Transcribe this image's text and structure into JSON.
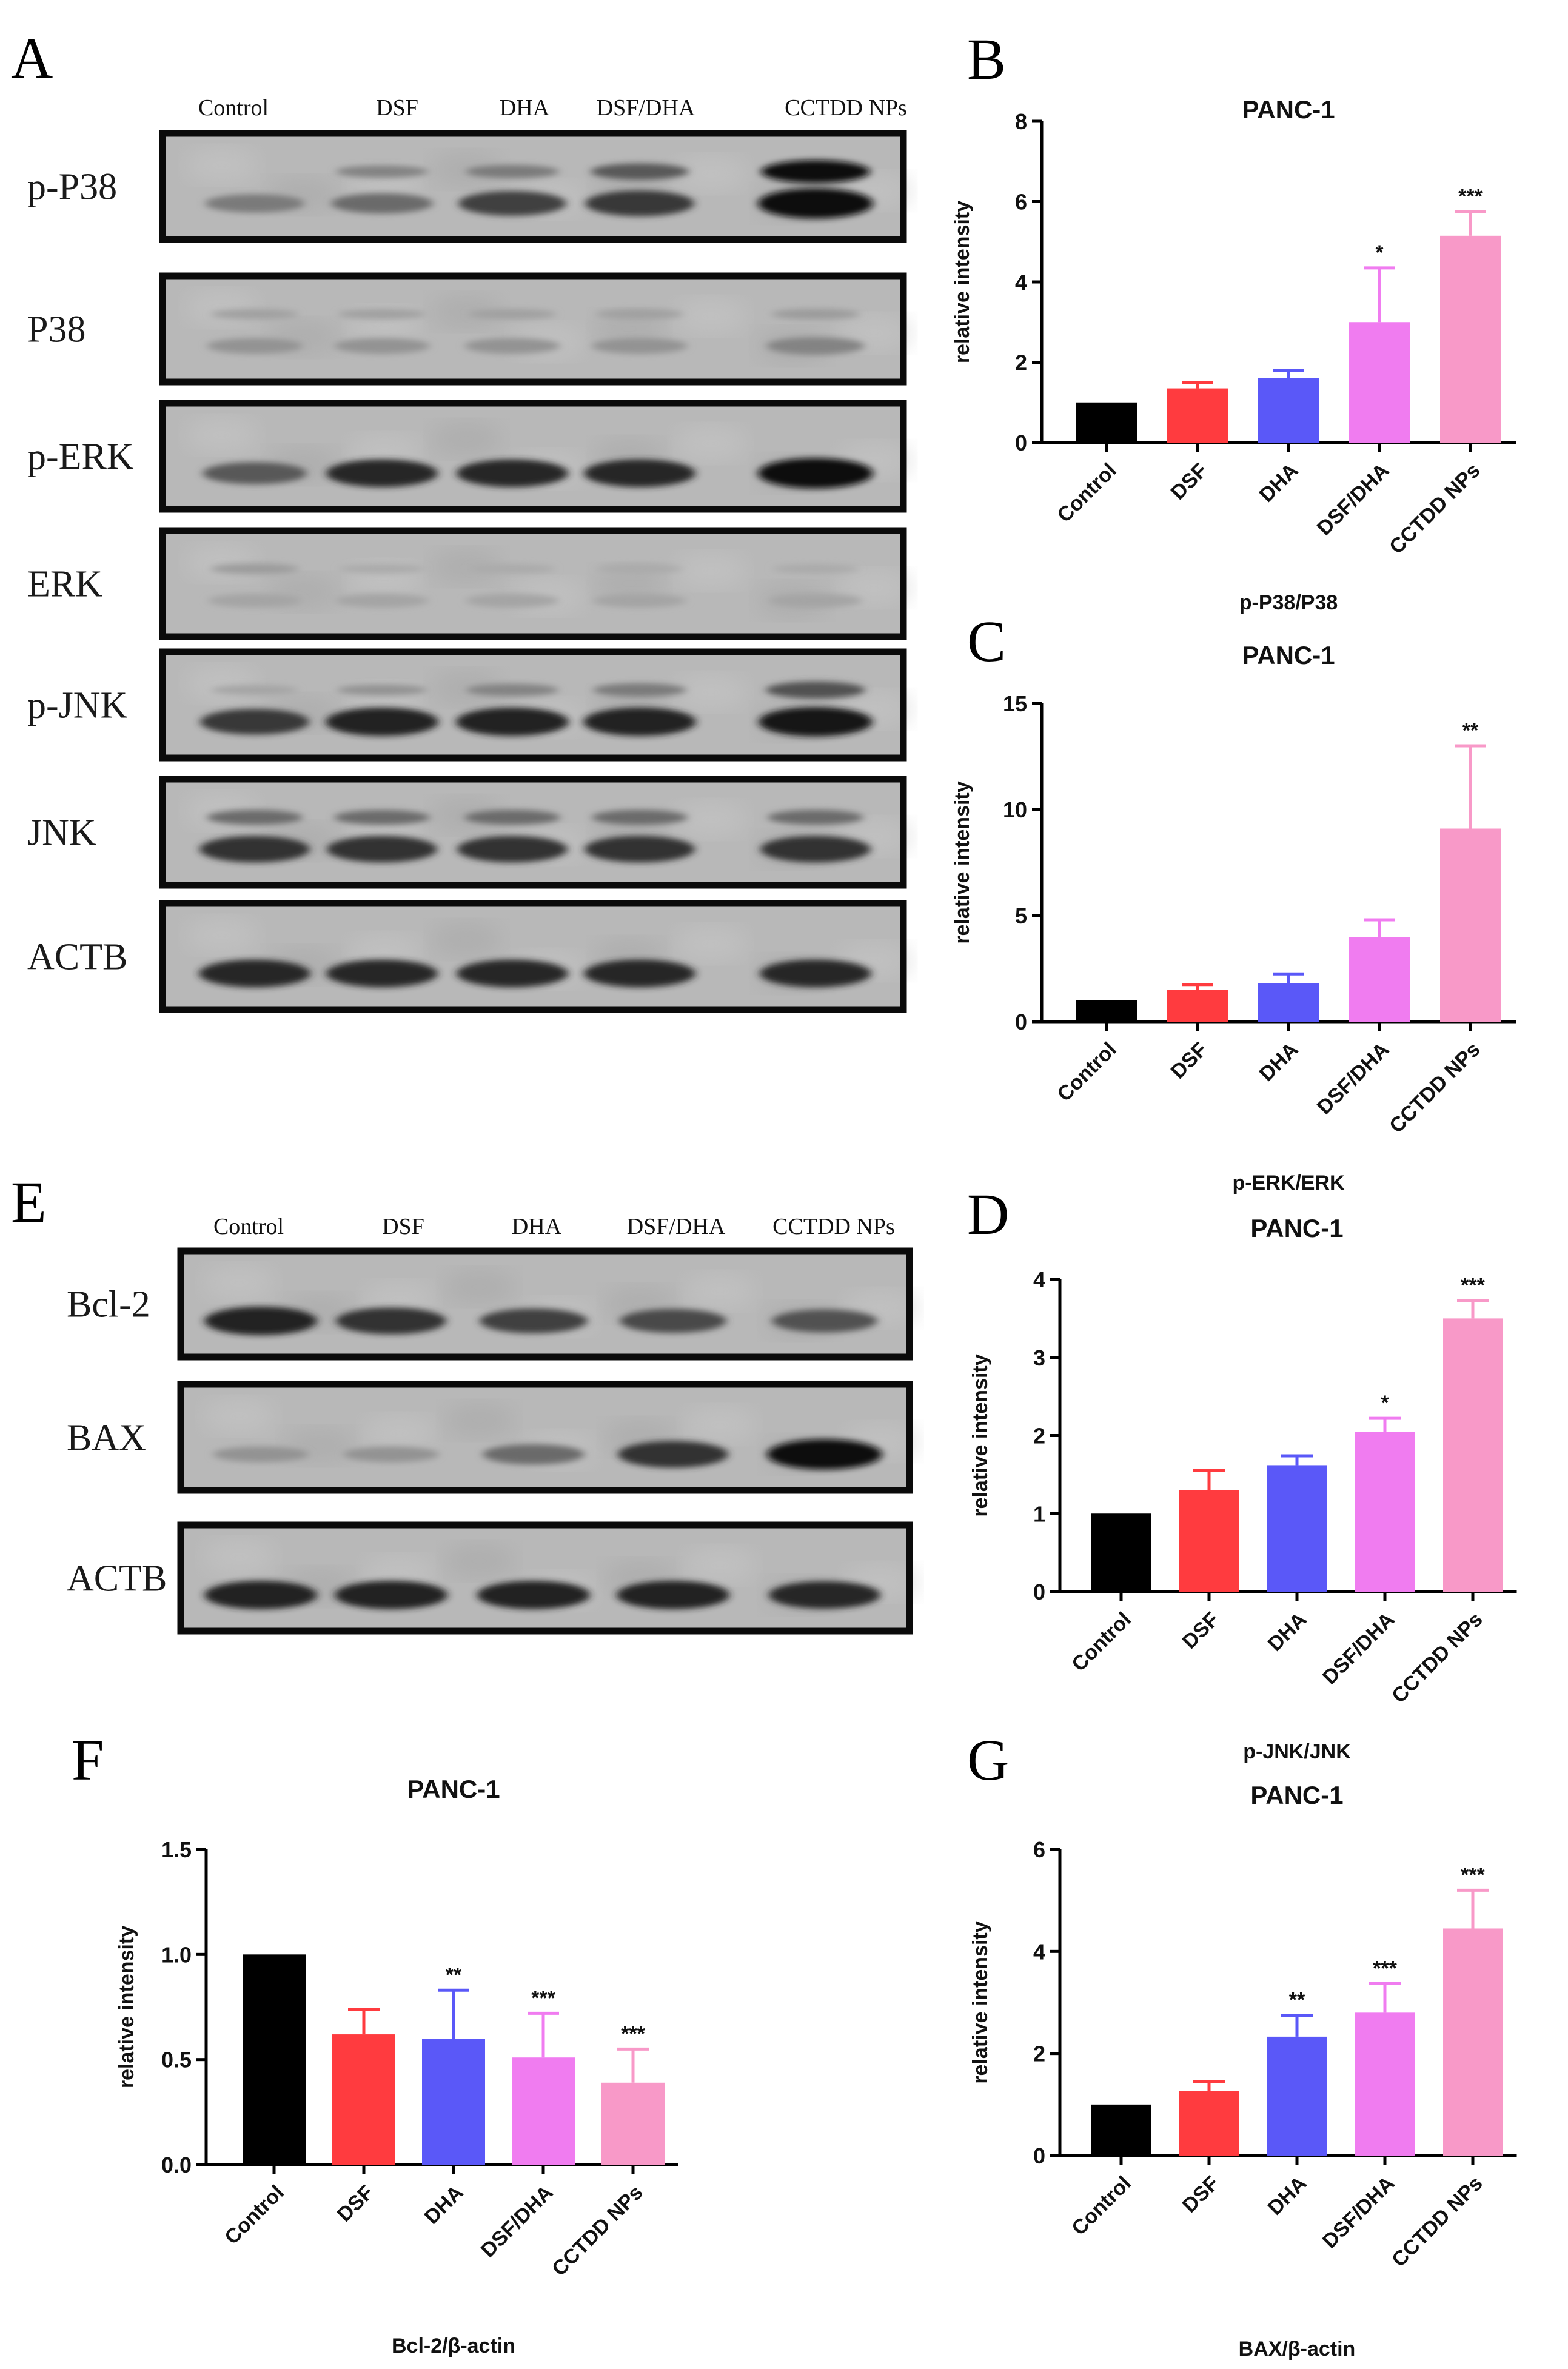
{
  "panels": {
    "A": {
      "letter": "A",
      "lanes": [
        "Control",
        "DSF",
        "DHA",
        "DSF/DHA",
        "CCTDD NPs"
      ],
      "blots": [
        {
          "label": "p-P38",
          "bands": [
            0.35,
            0.45,
            0.7,
            0.75,
            1.0
          ],
          "upper": [
            0.0,
            0.3,
            0.35,
            0.55,
            1.0
          ]
        },
        {
          "label": "P38",
          "bands": [
            0.2,
            0.2,
            0.2,
            0.2,
            0.3
          ],
          "upper": [
            0.12,
            0.12,
            0.12,
            0.12,
            0.15
          ]
        },
        {
          "label": "p-ERK",
          "bands": [
            0.55,
            0.85,
            0.85,
            0.85,
            1.0
          ],
          "upper": [
            0,
            0,
            0,
            0,
            0
          ]
        },
        {
          "label": "ERK",
          "bands": [
            0.1,
            0.1,
            0.1,
            0.1,
            0.1
          ],
          "upper": [
            0.15,
            0.06,
            0.06,
            0.06,
            0.06
          ]
        },
        {
          "label": "p-JNK",
          "bands": [
            0.75,
            0.9,
            0.9,
            0.9,
            0.95
          ],
          "upper": [
            0.1,
            0.2,
            0.3,
            0.35,
            0.6
          ]
        },
        {
          "label": "JNK",
          "bands": [
            0.8,
            0.8,
            0.8,
            0.8,
            0.8
          ],
          "upper": [
            0.45,
            0.45,
            0.45,
            0.45,
            0.45
          ]
        },
        {
          "label": "ACTB",
          "bands": [
            0.85,
            0.85,
            0.85,
            0.85,
            0.85
          ],
          "upper": [
            0,
            0,
            0,
            0,
            0
          ]
        }
      ]
    },
    "E": {
      "letter": "E",
      "lanes": [
        "Control",
        "DSF",
        "DHA",
        "DSF/DHA",
        "CCTDD NPs"
      ],
      "blots": [
        {
          "label": "Bcl-2",
          "bands": [
            0.9,
            0.8,
            0.7,
            0.65,
            0.6
          ],
          "upper": [
            0,
            0,
            0,
            0,
            0
          ]
        },
        {
          "label": "BAX",
          "bands": [
            0.2,
            0.2,
            0.45,
            0.8,
            1.0
          ],
          "upper": [
            0,
            0,
            0,
            0,
            0
          ]
        },
        {
          "label": "ACTB",
          "bands": [
            0.9,
            0.9,
            0.9,
            0.9,
            0.85
          ],
          "upper": [
            0,
            0,
            0,
            0,
            0
          ]
        }
      ]
    }
  },
  "chart_data": [
    {
      "panel": "B",
      "type": "bar",
      "title": "PANC-1",
      "ylabel": "relative intensity",
      "xlabel": "p-P38/P38",
      "categories": [
        "Control",
        "DSF",
        "DHA",
        "DSF/DHA",
        "CCTDD NPs"
      ],
      "values": [
        1.0,
        1.35,
        1.6,
        3.0,
        5.15
      ],
      "errors": [
        0.0,
        0.15,
        0.2,
        1.35,
        0.6
      ],
      "significance": [
        "",
        "",
        "",
        "*",
        "***"
      ],
      "ylim": [
        0,
        8
      ],
      "yticks": [
        0,
        2,
        4,
        6,
        8
      ],
      "ytick_labels": [
        "0",
        "2",
        "4",
        "6",
        "8"
      ]
    },
    {
      "panel": "C",
      "type": "bar",
      "title": "PANC-1",
      "ylabel": "relative intensity",
      "xlabel": "p-ERK/ERK",
      "categories": [
        "Control",
        "DSF",
        "DHA",
        "DSF/DHA",
        "CCTDD NPs"
      ],
      "values": [
        1.0,
        1.5,
        1.8,
        4.0,
        9.1
      ],
      "errors": [
        0.0,
        0.25,
        0.45,
        0.8,
        3.9
      ],
      "significance": [
        "",
        "",
        "",
        "",
        "**"
      ],
      "ylim": [
        0,
        15
      ],
      "yticks": [
        0,
        5,
        10,
        15
      ],
      "ytick_labels": [
        "0",
        "5",
        "10",
        "15"
      ]
    },
    {
      "panel": "D",
      "type": "bar",
      "title": "PANC-1",
      "ylabel": "relative intensity",
      "xlabel": "p-JNK/JNK",
      "categories": [
        "Control",
        "DSF",
        "DHA",
        "DSF/DHA",
        "CCTDD NPs"
      ],
      "values": [
        1.0,
        1.3,
        1.62,
        2.05,
        3.5
      ],
      "errors": [
        0.0,
        0.25,
        0.12,
        0.17,
        0.23
      ],
      "significance": [
        "",
        "",
        "",
        "*",
        "***"
      ],
      "ylim": [
        0,
        4
      ],
      "yticks": [
        0,
        1,
        2,
        3,
        4
      ],
      "ytick_labels": [
        "0",
        "1",
        "2",
        "3",
        "4"
      ]
    },
    {
      "panel": "F",
      "type": "bar",
      "title": "PANC-1",
      "ylabel": "relative intensity",
      "xlabel": "Bcl-2/β-actin",
      "categories": [
        "Control",
        "DSF",
        "DHA",
        "DSF/DHA",
        "CCTDD NPs"
      ],
      "values": [
        1.0,
        0.62,
        0.6,
        0.51,
        0.39
      ],
      "errors": [
        0.0,
        0.12,
        0.23,
        0.21,
        0.16
      ],
      "significance": [
        "",
        "",
        "**",
        "***",
        "***"
      ],
      "ylim": [
        0,
        1.5
      ],
      "yticks": [
        0,
        0.5,
        1.0,
        1.5
      ],
      "ytick_labels": [
        "0.0",
        "0.5",
        "1.0",
        "1.5"
      ]
    },
    {
      "panel": "G",
      "type": "bar",
      "title": "PANC-1",
      "ylabel": "relative intensity",
      "xlabel": "BAX/β-actin",
      "categories": [
        "Control",
        "DSF",
        "DHA",
        "DSF/DHA",
        "CCTDD NPs"
      ],
      "values": [
        1.0,
        1.27,
        2.33,
        2.8,
        4.45
      ],
      "errors": [
        0.0,
        0.18,
        0.42,
        0.57,
        0.75
      ],
      "significance": [
        "",
        "",
        "**",
        "***",
        "***"
      ],
      "ylim": [
        0,
        6
      ],
      "yticks": [
        0,
        2,
        4,
        6
      ],
      "ytick_labels": [
        "0",
        "2",
        "4",
        "6"
      ]
    }
  ],
  "colors": {
    "bars": [
      "#000000",
      "#ff3b3f",
      "#5a58f8",
      "#f07cf0",
      "#f899c8"
    ]
  }
}
